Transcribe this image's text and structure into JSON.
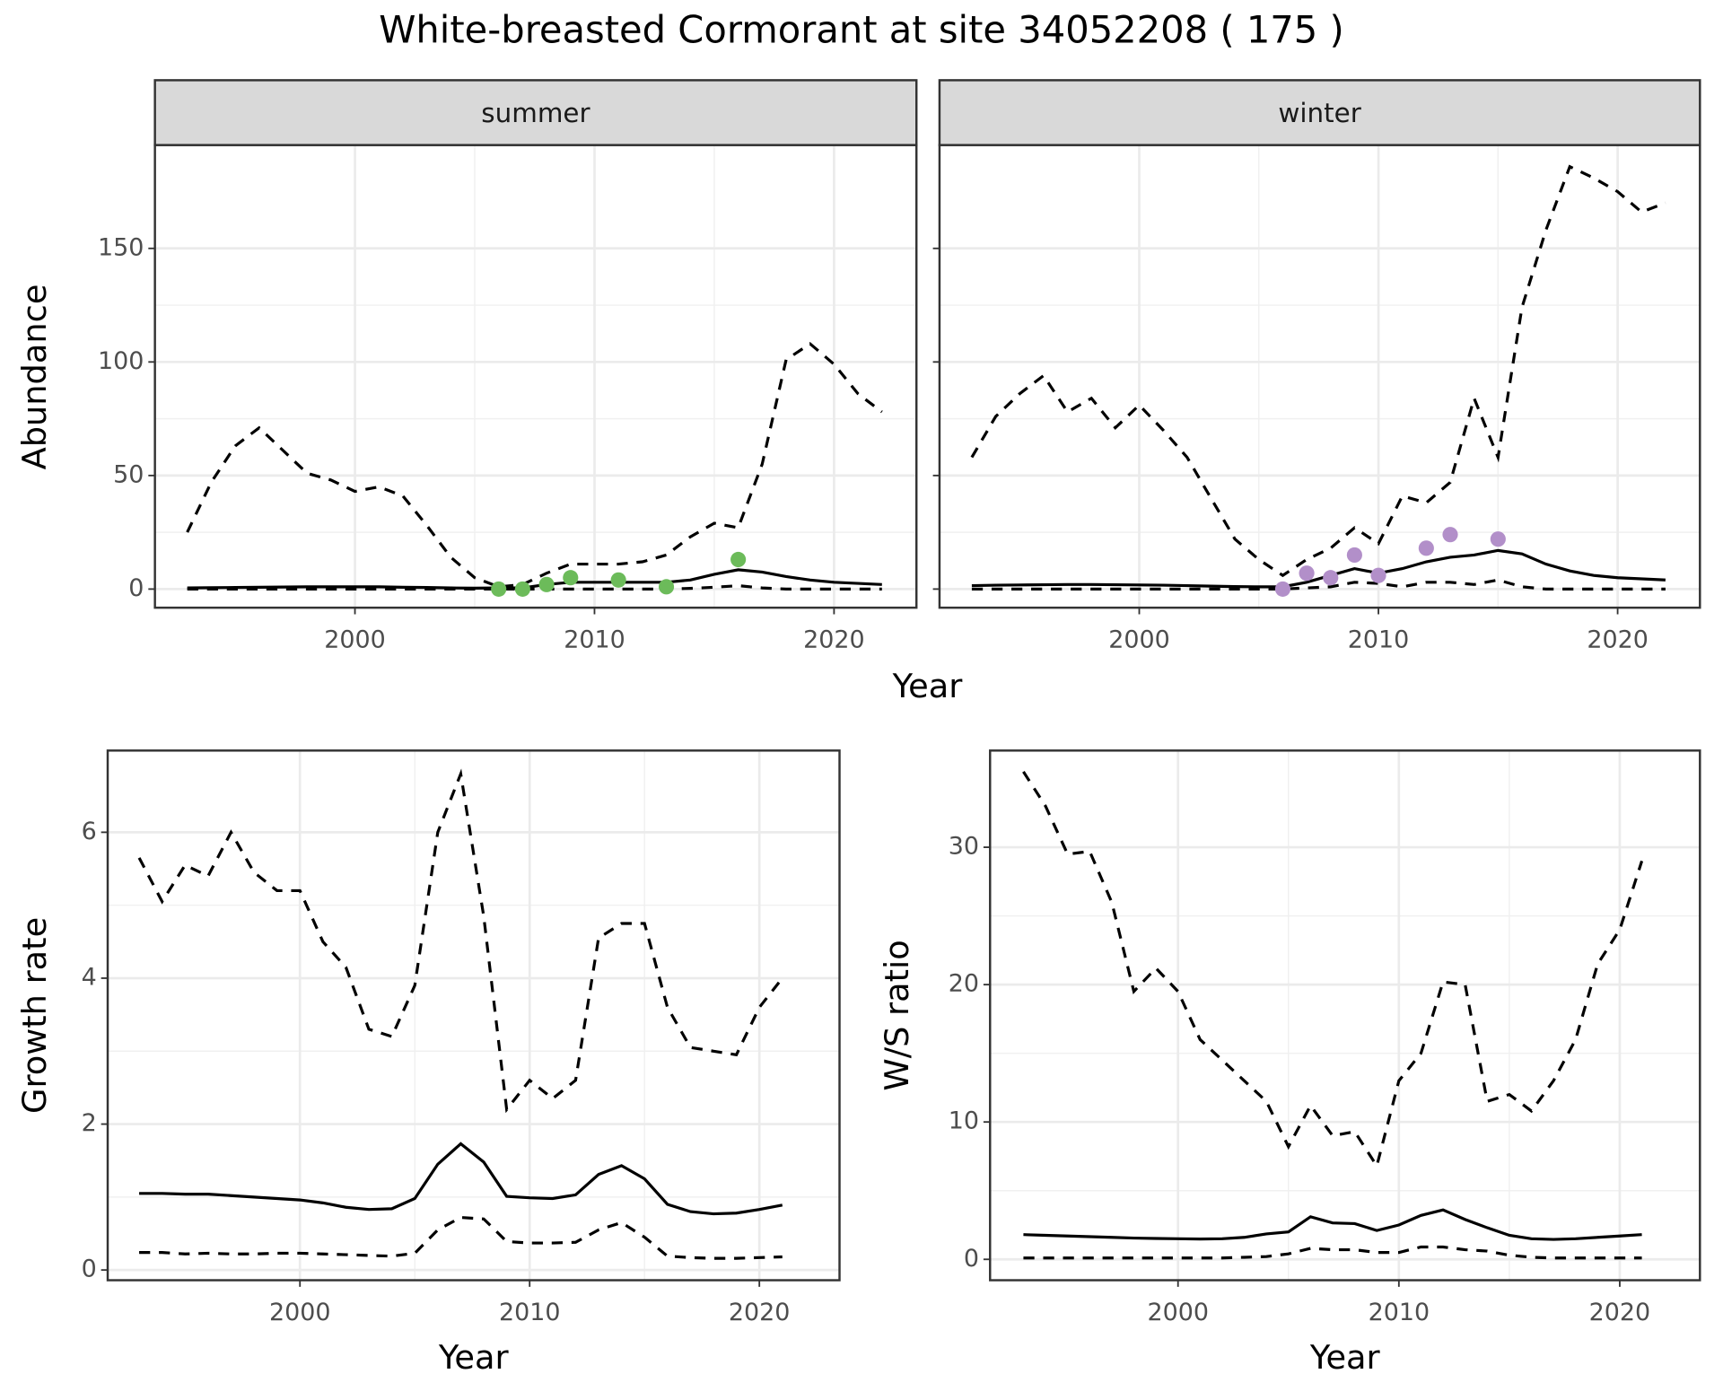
{
  "title": "White-breasted Cormorant at site 34052208 ( 175 )",
  "chart_data": [
    {
      "type": "line",
      "title": "summer",
      "ylabel": "Abundance",
      "xlabel": "Year",
      "x": [
        1993,
        1994,
        1995,
        1996,
        1997,
        1998,
        1999,
        2000,
        2001,
        2002,
        2003,
        2004,
        2005,
        2006,
        2007,
        2008,
        2009,
        2010,
        2011,
        2012,
        2013,
        2014,
        2015,
        2016,
        2017,
        2018,
        2019,
        2020,
        2021,
        2022
      ],
      "xlim": [
        1991.65,
        2023.44
      ],
      "xticks": [
        2000,
        2010,
        2020
      ],
      "ylim": [
        -8.2,
        195.5
      ],
      "yticks": [
        0,
        50,
        100,
        150
      ],
      "ytick_labels": true,
      "grid": true,
      "series": [
        {
          "style": "dashed",
          "color": "#000000",
          "values": [
            25,
            47,
            63,
            71,
            61,
            51,
            48,
            43,
            45,
            41,
            28,
            14,
            5,
            1,
            2,
            7,
            11,
            11,
            11,
            12,
            15,
            23,
            29,
            27,
            55,
            101,
            108,
            99,
            86,
            78
          ]
        },
        {
          "style": "solid",
          "color": "#000000",
          "values": [
            0.5,
            0.6,
            0.7,
            0.8,
            0.9,
            1,
            1,
            1,
            1,
            0.8,
            0.7,
            0.5,
            0.4,
            0.5,
            0.5,
            2,
            3,
            3,
            3,
            3,
            3,
            4,
            6.5,
            8.5,
            7.5,
            5.5,
            4,
            3,
            2.5,
            2
          ]
        },
        {
          "style": "dashed",
          "color": "#000000",
          "values": [
            0,
            0,
            0,
            0,
            0,
            0,
            0,
            0,
            0,
            0,
            0,
            0,
            0,
            0,
            0,
            0,
            0,
            0,
            0,
            0,
            0,
            0.3,
            0.8,
            1.5,
            0.5,
            0,
            0,
            0,
            0,
            0
          ]
        },
        {
          "style": "points",
          "color": "#6cbb5a",
          "x": [
            2006,
            2007,
            2008,
            2009,
            2011,
            2013,
            2016
          ],
          "values": [
            0,
            0,
            2,
            5,
            4,
            1,
            13
          ]
        }
      ]
    },
    {
      "type": "line",
      "title": "winter",
      "x": [
        1993,
        1994,
        1995,
        1996,
        1997,
        1998,
        1999,
        2000,
        2001,
        2002,
        2003,
        2004,
        2005,
        2006,
        2007,
        2008,
        2009,
        2010,
        2011,
        2012,
        2013,
        2014,
        2015,
        2016,
        2017,
        2018,
        2019,
        2020,
        2021,
        2022
      ],
      "xlim": [
        1991.65,
        2023.44
      ],
      "xticks": [
        2000,
        2010,
        2020
      ],
      "ylim": [
        -8.2,
        195.5
      ],
      "yticks": [
        0,
        50,
        100,
        150
      ],
      "ytick_labels": false,
      "grid": true,
      "series": [
        {
          "style": "dashed",
          "color": "#000000",
          "values": [
            58,
            76,
            86,
            94,
            78,
            84,
            71,
            81,
            70,
            58,
            40,
            22,
            13,
            6,
            13,
            18,
            27,
            20,
            41,
            38,
            47,
            84,
            58,
            124,
            158,
            186,
            181,
            175,
            166,
            170
          ]
        },
        {
          "style": "solid",
          "color": "#000000",
          "values": [
            1.5,
            1.7,
            1.8,
            1.9,
            2,
            2,
            1.9,
            1.8,
            1.7,
            1.5,
            1.3,
            1.1,
            1,
            1,
            3,
            6,
            9,
            7,
            9,
            12,
            14,
            15,
            17,
            15.5,
            11,
            8,
            6,
            5,
            4.5,
            4
          ]
        },
        {
          "style": "dashed",
          "color": "#000000",
          "values": [
            0,
            0,
            0,
            0,
            0,
            0,
            0,
            0,
            0,
            0,
            0,
            0,
            0,
            0,
            0.5,
            1,
            3,
            2.5,
            1,
            3,
            3,
            2,
            4,
            1,
            0,
            0,
            0,
            0,
            0,
            0
          ]
        },
        {
          "style": "points",
          "color": "#b28fc9",
          "x": [
            2006,
            2007,
            2008,
            2009,
            2010,
            2012,
            2013,
            2015
          ],
          "values": [
            0,
            7,
            5,
            15,
            6,
            18,
            24,
            22
          ]
        }
      ]
    },
    {
      "type": "line",
      "ylabel": "Growth rate",
      "xlabel": "Year",
      "x": [
        1993,
        1994,
        1995,
        1996,
        1997,
        1998,
        1999,
        2000,
        2001,
        2002,
        2003,
        2004,
        2005,
        2006,
        2007,
        2008,
        2009,
        2010,
        2011,
        2012,
        2013,
        2014,
        2015,
        2016,
        2017,
        2018,
        2019,
        2020,
        2021
      ],
      "xlim": [
        1991.63,
        2023.49
      ],
      "xticks": [
        2000,
        2010,
        2020
      ],
      "ylim": [
        -0.14,
        7.12
      ],
      "yticks": [
        0,
        2,
        4,
        6
      ],
      "ytick_labels": true,
      "grid": true,
      "series": [
        {
          "style": "dashed",
          "color": "#000000",
          "values": [
            5.65,
            5.05,
            5.55,
            5.4,
            6.0,
            5.45,
            5.2,
            5.2,
            4.5,
            4.15,
            3.3,
            3.2,
            3.9,
            6.0,
            6.8,
            4.85,
            2.2,
            2.6,
            2.35,
            2.6,
            4.55,
            4.75,
            4.75,
            3.6,
            3.05,
            3.0,
            2.95,
            3.6,
            4.0
          ]
        },
        {
          "style": "solid",
          "color": "#000000",
          "values": [
            1.05,
            1.05,
            1.04,
            1.04,
            1.02,
            1.0,
            0.98,
            0.96,
            0.92,
            0.86,
            0.83,
            0.84,
            0.98,
            1.45,
            1.73,
            1.48,
            1.01,
            0.99,
            0.98,
            1.03,
            1.31,
            1.43,
            1.25,
            0.9,
            0.8,
            0.77,
            0.78,
            0.83,
            0.89
          ]
        },
        {
          "style": "dashed",
          "color": "#000000",
          "values": [
            0.24,
            0.24,
            0.22,
            0.23,
            0.22,
            0.22,
            0.23,
            0.23,
            0.22,
            0.21,
            0.2,
            0.19,
            0.23,
            0.55,
            0.72,
            0.7,
            0.39,
            0.37,
            0.37,
            0.38,
            0.55,
            0.65,
            0.45,
            0.19,
            0.17,
            0.16,
            0.16,
            0.17,
            0.18
          ]
        }
      ]
    },
    {
      "type": "line",
      "ylabel": "W/S ratio",
      "xlabel": "Year",
      "x": [
        1993,
        1994,
        1995,
        1996,
        1997,
        1998,
        1999,
        2000,
        2001,
        2002,
        2003,
        2004,
        2005,
        2006,
        2007,
        2008,
        2009,
        2010,
        2011,
        2012,
        2013,
        2014,
        2015,
        2016,
        2017,
        2018,
        2019,
        2020,
        2021
      ],
      "xlim": [
        1991.49,
        2023.63
      ],
      "xticks": [
        2000,
        2010,
        2020
      ],
      "ylim": [
        -1.52,
        37.04
      ],
      "yticks": [
        0,
        10,
        20,
        30
      ],
      "ytick_labels": true,
      "grid": true,
      "series": [
        {
          "style": "dashed",
          "color": "#000000",
          "values": [
            35.5,
            33,
            29.5,
            29.7,
            26,
            19.5,
            21.2,
            19.5,
            16,
            14.5,
            13,
            11.5,
            8.2,
            11.2,
            9,
            9.3,
            6.8,
            13,
            15,
            20.2,
            20,
            11.5,
            12,
            10.8,
            13,
            16,
            21.5,
            24,
            29
          ]
        },
        {
          "style": "solid",
          "color": "#000000",
          "values": [
            1.8,
            1.75,
            1.7,
            1.65,
            1.6,
            1.55,
            1.52,
            1.5,
            1.48,
            1.5,
            1.6,
            1.85,
            2.0,
            3.1,
            2.65,
            2.6,
            2.1,
            2.5,
            3.2,
            3.6,
            2.9,
            2.3,
            1.75,
            1.5,
            1.45,
            1.5,
            1.6,
            1.7,
            1.8
          ]
        },
        {
          "style": "dashed",
          "color": "#000000",
          "values": [
            0.1,
            0.1,
            0.1,
            0.1,
            0.1,
            0.1,
            0.1,
            0.1,
            0.1,
            0.1,
            0.15,
            0.2,
            0.4,
            0.8,
            0.7,
            0.7,
            0.5,
            0.5,
            0.9,
            0.9,
            0.7,
            0.6,
            0.3,
            0.15,
            0.1,
            0.1,
            0.1,
            0.1,
            0.1
          ]
        }
      ]
    }
  ]
}
